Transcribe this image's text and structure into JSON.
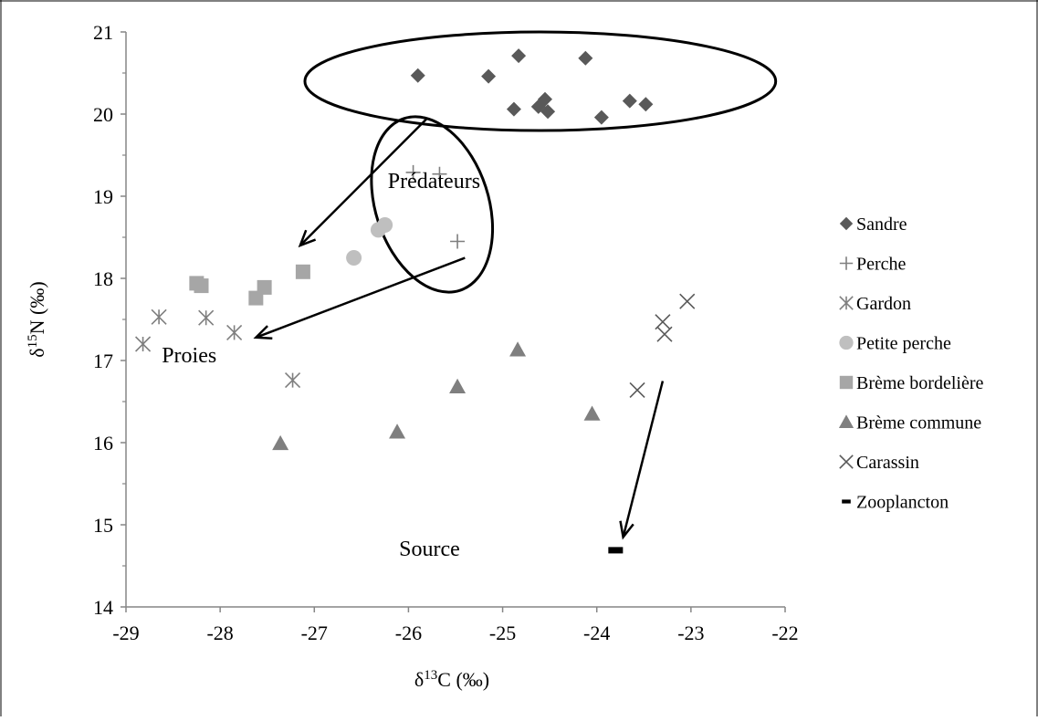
{
  "chart_data": {
    "type": "scatter",
    "title": "",
    "xlabel": "δ13C (‰)",
    "xlabel_parts": {
      "symbol": "δ",
      "sup": "13",
      "rest": "C (‰)"
    },
    "ylabel": "δ15N (‰)",
    "ylabel_parts": {
      "symbol": "δ",
      "sup": "15",
      "rest": "N (‰)"
    },
    "xlim": [
      -29,
      -22
    ],
    "ylim": [
      14,
      21
    ],
    "xticks": [
      -29,
      -28,
      -27,
      -26,
      -25,
      -24,
      -23,
      -22
    ],
    "yticks": [
      14,
      15,
      16,
      17,
      18,
      19,
      20,
      21
    ],
    "grid": false,
    "legend_position": "right",
    "series": [
      {
        "name": "Sandre",
        "marker": "diamond",
        "color": "#595959",
        "x": [
          -25.9,
          -25.15,
          -24.83,
          -24.12,
          -24.88,
          -24.62,
          -24.55,
          -24.52,
          -23.95,
          -23.65,
          -23.48
        ],
        "y": [
          20.47,
          20.46,
          20.71,
          20.68,
          20.06,
          20.09,
          20.18,
          20.03,
          19.96,
          20.16,
          20.12
        ]
      },
      {
        "name": "Perche",
        "marker": "plus",
        "color": "#7f7f7f",
        "x": [
          -25.95,
          -25.67,
          -25.48
        ],
        "y": [
          19.29,
          19.27,
          18.45
        ]
      },
      {
        "name": "Gardon",
        "marker": "asterisk",
        "color": "#7f7f7f",
        "x": [
          -28.82,
          -28.65,
          -28.15,
          -27.85,
          -27.23
        ],
        "y": [
          17.2,
          17.53,
          17.52,
          17.34,
          16.76
        ]
      },
      {
        "name": "Petite perche",
        "marker": "circle",
        "color": "#bfbfbf",
        "x": [
          -26.58,
          -26.32,
          -26.25
        ],
        "y": [
          18.25,
          18.59,
          18.65
        ]
      },
      {
        "name": "Brème bordelière",
        "marker": "square",
        "color": "#a6a6a6",
        "x": [
          -28.25,
          -28.2,
          -27.62,
          -27.53,
          -27.12
        ],
        "y": [
          17.94,
          17.91,
          17.76,
          17.89,
          18.08
        ]
      },
      {
        "name": "Brème commune",
        "marker": "triangle",
        "color": "#7f7f7f",
        "x": [
          -27.36,
          -26.12,
          -25.48,
          -24.84,
          -24.05
        ],
        "y": [
          15.99,
          16.13,
          16.68,
          17.13,
          16.35
        ]
      },
      {
        "name": "Carassin",
        "marker": "x",
        "color": "#595959",
        "x": [
          -23.04,
          -23.3,
          -23.28,
          -23.57
        ],
        "y": [
          17.72,
          17.47,
          17.32,
          16.64
        ]
      },
      {
        "name": "Zooplancton",
        "marker": "dash",
        "color": "#000000",
        "x": [
          -23.8
        ],
        "y": [
          14.69
        ]
      }
    ],
    "annotations": [
      {
        "text": "Prédateurs",
        "x": -26.22,
        "y": 19.1,
        "anchor": "start"
      },
      {
        "text": "Proies",
        "x": -28.62,
        "y": 16.98,
        "anchor": "start"
      },
      {
        "text": "Source",
        "x": -26.1,
        "y": 14.62,
        "anchor": "start"
      }
    ],
    "ellipses": [
      {
        "group": "Sandre",
        "cx": -24.6,
        "cy": 20.4,
        "rx": 2.5,
        "ry": 0.6
      },
      {
        "group": "Perche",
        "cx": -25.75,
        "cy": 18.9,
        "rx": 0.6,
        "ry": 1.1,
        "rotate": -18
      }
    ],
    "arrows": [
      {
        "from": [
          -25.8,
          19.95
        ],
        "to": [
          -27.15,
          18.4
        ]
      },
      {
        "from": [
          -25.4,
          18.25
        ],
        "to": [
          -27.62,
          17.28
        ]
      },
      {
        "from": [
          -23.3,
          16.75
        ],
        "to": [
          -23.72,
          14.85
        ]
      }
    ]
  }
}
